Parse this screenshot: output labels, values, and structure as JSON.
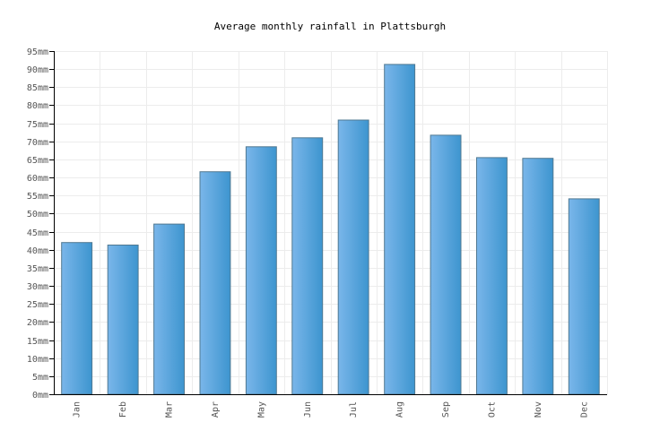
{
  "chart_data": {
    "type": "bar",
    "title": "Average monthly rainfall in Plattsburgh",
    "xlabel": "",
    "ylabel": "",
    "unit": "mm",
    "categories": [
      "Jan",
      "Feb",
      "Mar",
      "Apr",
      "May",
      "Jun",
      "Jul",
      "Aug",
      "Sep",
      "Oct",
      "Nov",
      "Dec"
    ],
    "values": [
      42,
      41.3,
      47.1,
      61.6,
      68.5,
      71,
      75.9,
      91.3,
      71.7,
      65.5,
      65.3,
      54.1
    ],
    "ylim": [
      0,
      95
    ],
    "ytick_step": 5,
    "yticks": [
      "0mm",
      "5mm",
      "10mm",
      "15mm",
      "20mm",
      "25mm",
      "30mm",
      "35mm",
      "40mm",
      "45mm",
      "50mm",
      "55mm",
      "60mm",
      "65mm",
      "70mm",
      "75mm",
      "80mm",
      "85mm",
      "90mm",
      "95mm"
    ],
    "grid": true,
    "legend": "none",
    "colors": {
      "bar_light": "#7ab6ea",
      "bar_dark": "#3d95cf",
      "bar_edge": "#4f7891",
      "grid": "#ececec",
      "axis": "#000000"
    }
  }
}
